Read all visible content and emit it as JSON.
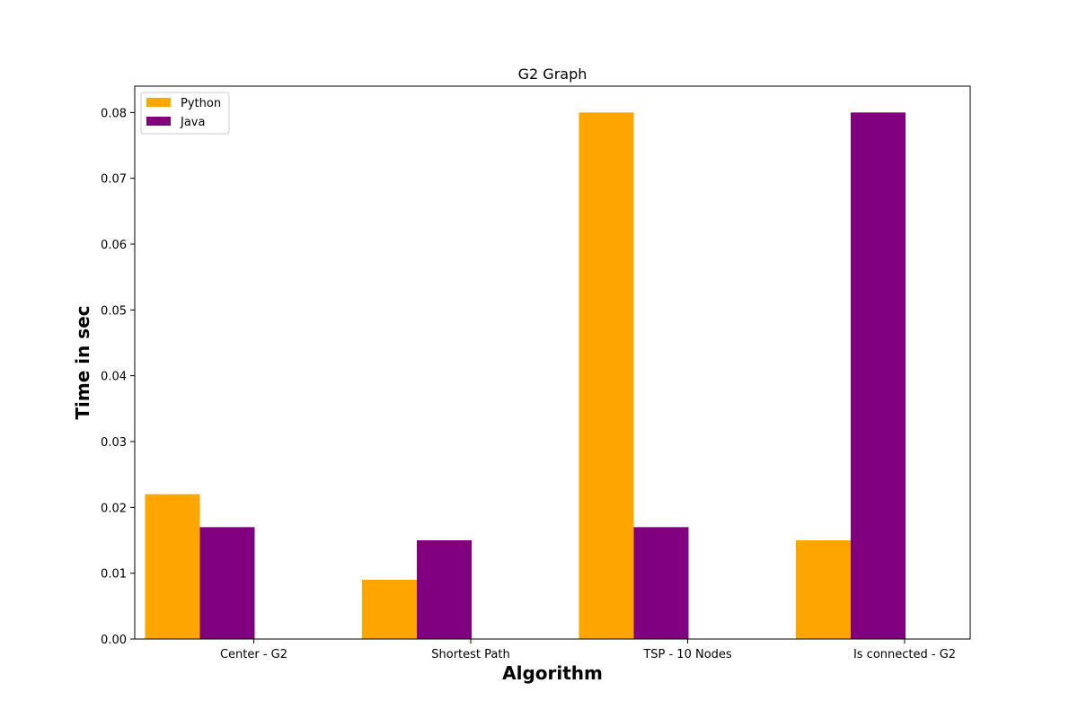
{
  "chart_data": {
    "type": "bar",
    "title": "G2 Graph",
    "xlabel": "Algorithm",
    "ylabel": "Time in sec",
    "categories": [
      "Center - G2",
      "Shortest Path",
      "TSP - 10 Nodes",
      "Is connected - G2"
    ],
    "series": [
      {
        "name": "Python",
        "color": "#FFA500",
        "values": [
          0.022,
          0.009,
          0.08,
          0.015
        ]
      },
      {
        "name": "Java",
        "color": "#800080",
        "values": [
          0.017,
          0.015,
          0.017,
          0.08
        ]
      }
    ],
    "ylim": [
      0,
      0.084
    ],
    "yticks": [
      "0.00",
      "0.01",
      "0.02",
      "0.03",
      "0.04",
      "0.05",
      "0.06",
      "0.07",
      "0.08"
    ],
    "grid": false,
    "legend": "top-left"
  }
}
